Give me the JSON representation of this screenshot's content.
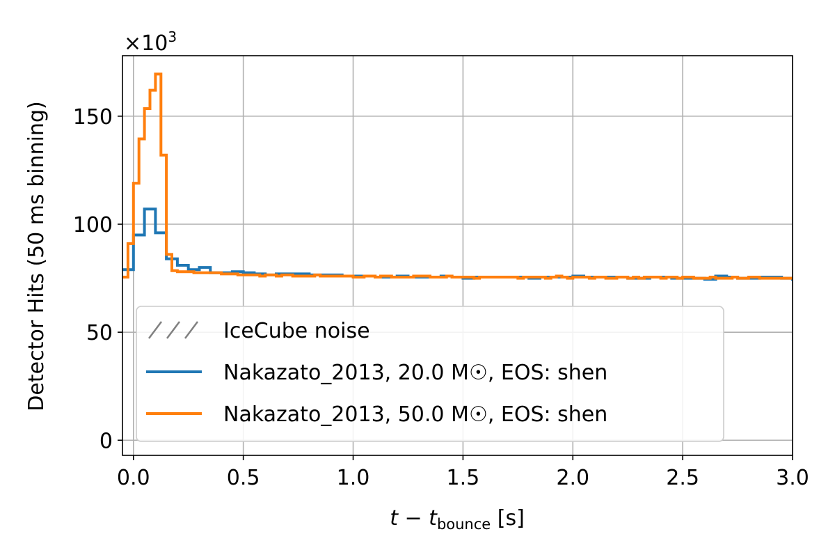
{
  "chart_data": {
    "type": "line",
    "step": true,
    "xlabel_main": "t − t",
    "xlabel_sub": "bounce",
    "xlabel_unit": " [s]",
    "ylabel": "Detector Hits (50 ms binning)",
    "offset_text_base": "×10",
    "offset_text_exp": "3",
    "xlim": [
      -0.05,
      3.0
    ],
    "ylim": [
      -7,
      178
    ],
    "grid": true,
    "legend_position": "lower-left",
    "xticks": [
      0.0,
      0.5,
      1.0,
      1.5,
      2.0,
      2.5,
      3.0
    ],
    "xtick_labels": [
      "0.0",
      "0.5",
      "1.0",
      "1.5",
      "2.0",
      "2.5",
      "3.0"
    ],
    "yticks": [
      0,
      50,
      100,
      150
    ],
    "ytick_labels": [
      "0",
      "50",
      "100",
      "150"
    ],
    "legend": {
      "noise_label": "IceCube noise",
      "noise_color": "#808080"
    },
    "series": [
      {
        "name": "Nakazato_2013, 20.0 M☉, EOS: shen",
        "color": "#1f77b4",
        "bin_width": 0.05,
        "x_start": -0.05,
        "values": [
          79,
          95,
          107,
          96,
          84,
          81,
          79,
          80,
          77.5,
          77.5,
          78,
          77.5,
          77,
          76.5,
          77,
          77,
          77,
          76.5,
          76.5,
          76.5,
          76,
          76,
          76,
          75.5,
          75.5,
          76,
          75.5,
          75.5,
          75.5,
          76,
          75.5,
          75,
          75.5,
          75.5,
          75.5,
          75.5,
          75.5,
          75,
          75.5,
          75.5,
          75.5,
          76,
          75.5,
          75.5,
          75.5,
          75.5,
          75,
          75,
          75.5,
          75.5,
          75,
          75,
          75,
          74.5,
          76,
          75.5,
          75,
          75,
          75.5,
          75.5,
          75,
          74.5
        ]
      },
      {
        "name": "Nakazato_2013, 50.0 M☉, EOS: shen",
        "color": "#ff7f0e",
        "bin_width": 0.025,
        "x_start": -0.05,
        "values": [
          75.5,
          91,
          119,
          139.5,
          153.5,
          162,
          169.5,
          132,
          86,
          78.5,
          78,
          78,
          78,
          77.5,
          77.5,
          77.5,
          77.5,
          77.5,
          77,
          77,
          77,
          76.5,
          76.5,
          76.5,
          76.5,
          76,
          76.5,
          76.5,
          76,
          76.5,
          76.5,
          76,
          76,
          76,
          76,
          76.5,
          76,
          76,
          76,
          76,
          76,
          76,
          75.5,
          75.5,
          76,
          76,
          75.5,
          76,
          76,
          75.5,
          75.5,
          75.5,
          75.5,
          76,
          76,
          76,
          75.5,
          75.5,
          75.5,
          76,
          75.5,
          75.5,
          75.5,
          75.5,
          75,
          75.5,
          75.5,
          75.5,
          75.5,
          75.5,
          75.5,
          75.5,
          75,
          75.5,
          75.5,
          75.5,
          75.5,
          75,
          75.5,
          76,
          75.5,
          75,
          75.5,
          75.5,
          75.5,
          75,
          75.5,
          75.5,
          75,
          75,
          75.5,
          75.5,
          75,
          75.5,
          75,
          75.5,
          75.5,
          75.5,
          75,
          75.5,
          75.5,
          75,
          75.5,
          75.5,
          75,
          75,
          75,
          75.5,
          75,
          75,
          75,
          75.5,
          75,
          75,
          75.5,
          75.5,
          75,
          75,
          75,
          75,
          75,
          75
        ]
      }
    ]
  }
}
